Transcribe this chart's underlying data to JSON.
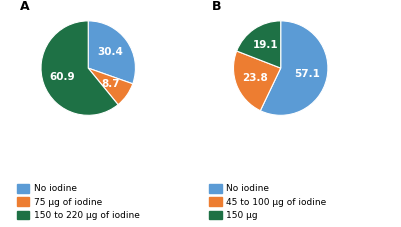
{
  "chart_A": {
    "values": [
      30.4,
      8.7,
      60.9
    ],
    "colors": [
      "#5b9bd5",
      "#ed7d31",
      "#1e7145"
    ],
    "labels": [
      "30.4",
      "8.7",
      "60.9"
    ],
    "startangle": 90,
    "title": "A"
  },
  "chart_B": {
    "values": [
      57.1,
      23.8,
      19.1
    ],
    "colors": [
      "#5b9bd5",
      "#ed7d31",
      "#1e7145"
    ],
    "labels": [
      "57.1",
      "23.8",
      "19.1"
    ],
    "startangle": 90,
    "title": "B"
  },
  "legend_A": {
    "labels": [
      "No iodine",
      "75 μg of iodine",
      "150 to 220 μg of iodine"
    ],
    "colors": [
      "#5b9bd5",
      "#ed7d31",
      "#1e7145"
    ]
  },
  "legend_B": {
    "labels": [
      "No iodine",
      "45 to 100 μg of iodine",
      "150 μg"
    ],
    "colors": [
      "#5b9bd5",
      "#ed7d31",
      "#1e7145"
    ]
  },
  "label_fontsize": 7.5,
  "legend_fontsize": 6.5,
  "title_fontsize": 9
}
